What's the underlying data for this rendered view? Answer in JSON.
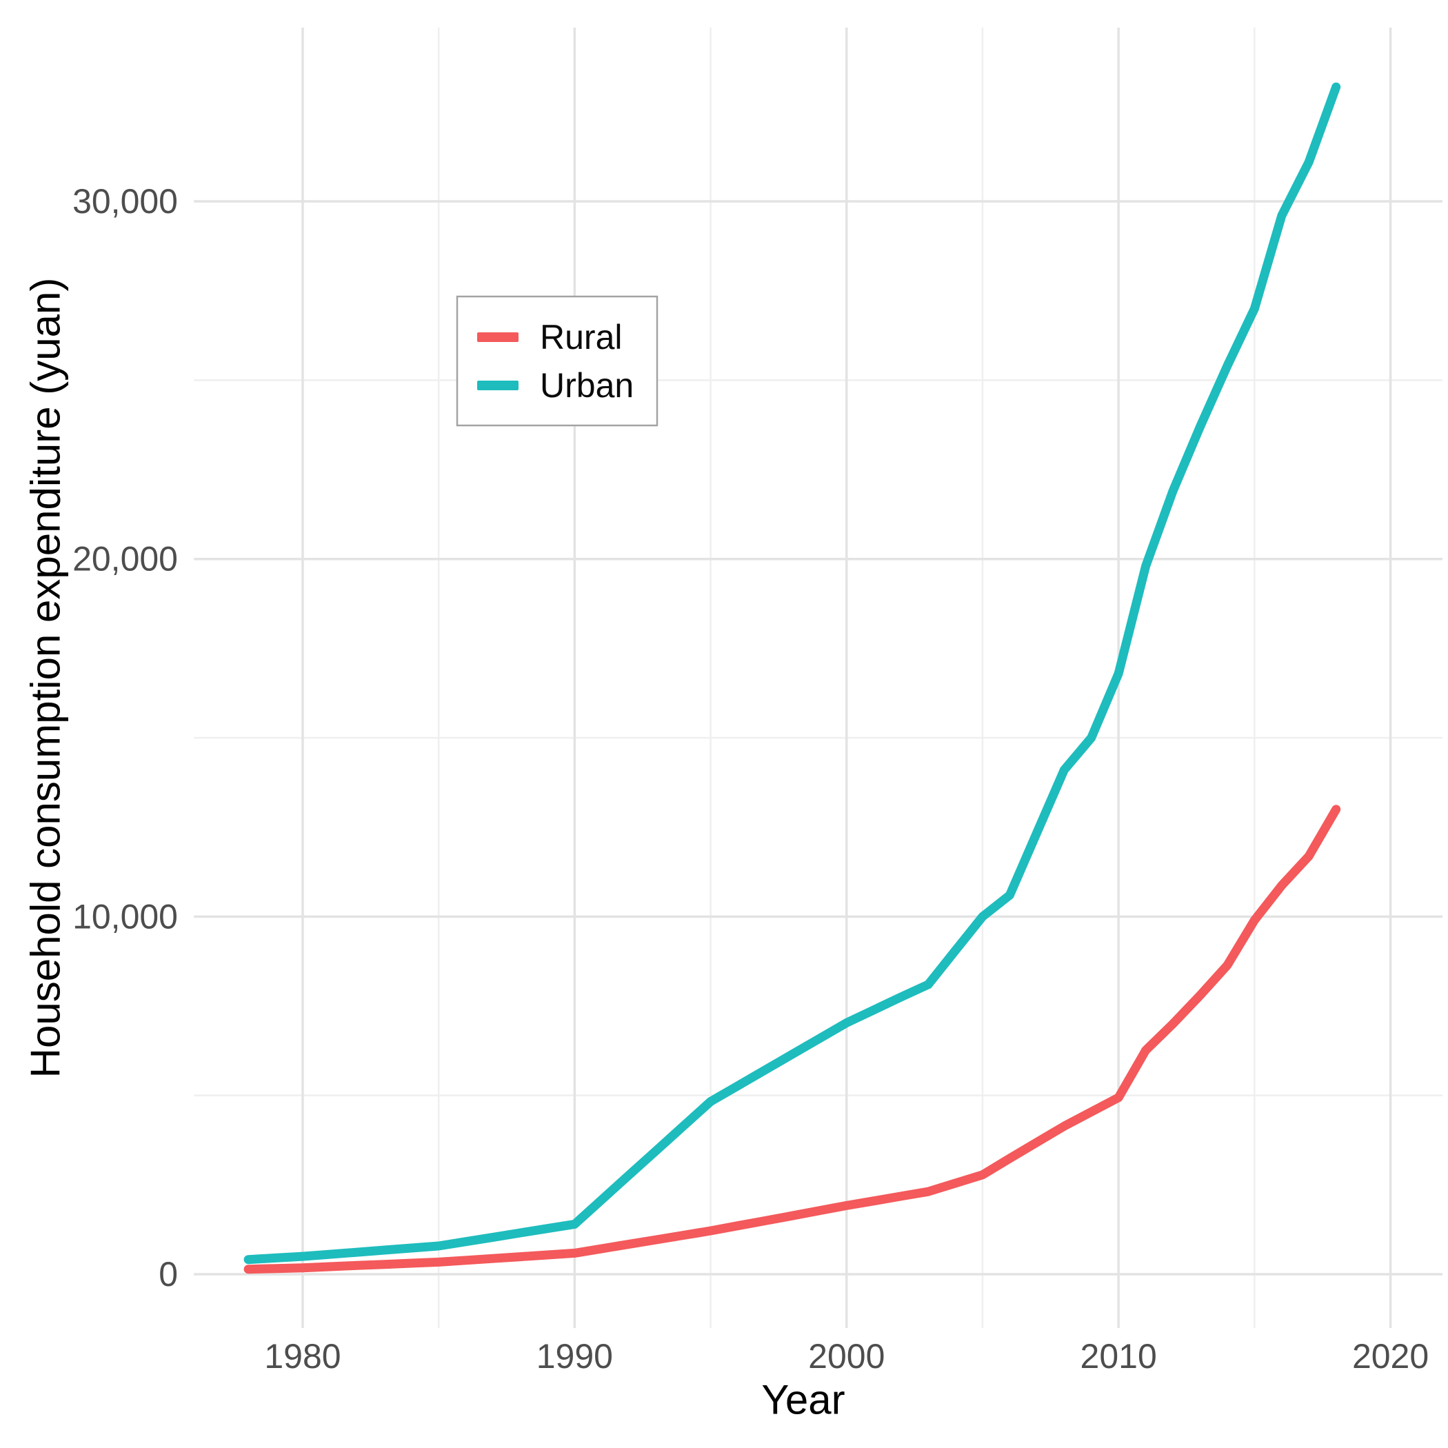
{
  "chart_data": {
    "type": "line",
    "title": "",
    "xlabel": "Year",
    "ylabel": "Household consumption expenditure (yuan)",
    "x": [
      1978,
      1979,
      1980,
      1981,
      1982,
      1983,
      1984,
      1985,
      1986,
      1987,
      1988,
      1989,
      1990,
      1991,
      1992,
      1993,
      1994,
      1995,
      1996,
      1997,
      1998,
      1999,
      2000,
      2001,
      2002,
      2003,
      2004,
      2005,
      2006,
      2007,
      2008,
      2009,
      2010,
      2011,
      2012,
      2013,
      2014,
      2015,
      2016,
      2017,
      2018
    ],
    "series": [
      {
        "name": "Rural",
        "color": "#f4595b",
        "values": [
          140,
          160,
          180,
          212,
          244,
          276,
          308,
          340,
          390,
          440,
          490,
          540,
          590,
          715,
          840,
          965,
          1090,
          1215,
          1355,
          1495,
          1635,
          1780,
          1920,
          2050,
          2180,
          2310,
          2545,
          2780,
          3240,
          3690,
          4140,
          4540,
          4940,
          6260,
          7000,
          7800,
          8640,
          9900,
          10870,
          11690,
          13000
        ]
      },
      {
        "name": "Urban",
        "color": "#1ebcbd",
        "values": [
          410,
          455,
          500,
          558,
          616,
          674,
          732,
          790,
          912,
          1034,
          1156,
          1278,
          1400,
          2086,
          2772,
          3458,
          4144,
          4830,
          5270,
          5710,
          6150,
          6590,
          7030,
          7390,
          7750,
          8100,
          9050,
          10000,
          10600,
          12350,
          14100,
          15000,
          16800,
          19800,
          21900,
          23700,
          25400,
          27000,
          29600,
          31100,
          33200
        ]
      }
    ],
    "xlim": [
      1976,
      2022
    ],
    "ylim": [
      -1500,
      34850
    ],
    "x_major_ticks": [
      1980,
      1990,
      2000,
      2010,
      2020
    ],
    "x_minor_ticks": [
      1985,
      1995,
      2005,
      2015
    ],
    "x_tick_labels": [
      "1980",
      "1990",
      "2000",
      "2010",
      "2020"
    ],
    "y_major_ticks": [
      0,
      10000,
      20000,
      30000
    ],
    "y_minor_ticks": [
      5000,
      15000,
      25000
    ],
    "y_tick_labels": [
      "0",
      "10,000",
      "20,000",
      "30,000"
    ],
    "grid": "major+minor",
    "legend_position": "inside-top-left",
    "legend": [
      "Rural",
      "Urban"
    ]
  },
  "style_colors": {
    "background": "#ffffff",
    "grid_major": "#e3e3e3",
    "grid_minor": "#efefef",
    "tick_label": "#4d4d4d",
    "axis_title": "#000000",
    "legend_border": "#a3a3a3",
    "legend_fill": "#ffffff",
    "rural_line": "#f4595b",
    "urban_line": "#1ebcbd"
  }
}
